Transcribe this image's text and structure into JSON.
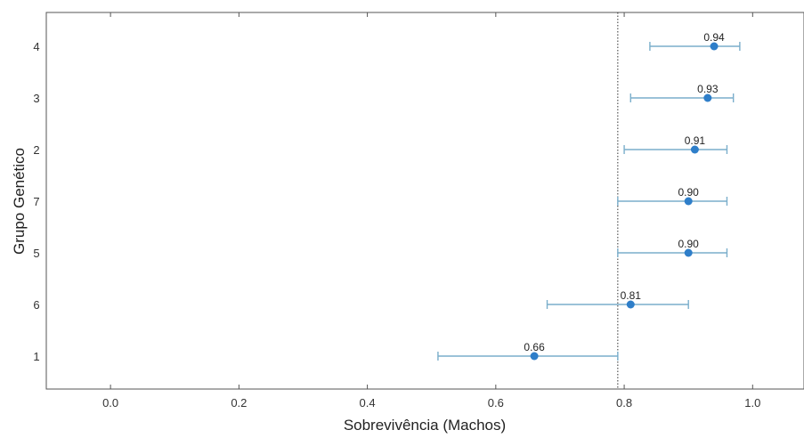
{
  "chart_data": {
    "type": "scatter",
    "orientation": "horizontal-forest",
    "xlabel": "Sobrevivência (Machos)",
    "ylabel": "Grupo Genético",
    "xlim": [
      -0.1,
      1.08
    ],
    "x_ticks": [
      "0.0",
      "0.2",
      "0.4",
      "0.6",
      "0.8",
      "1.0"
    ],
    "x_tick_values": [
      0.0,
      0.2,
      0.4,
      0.6,
      0.8,
      1.0
    ],
    "reference_line": 0.79,
    "grid": false,
    "colors": {
      "point": "#2e7ec9",
      "errorbar": "#7aaecb",
      "frame": "#555555"
    },
    "categories": [
      "4",
      "3",
      "2",
      "7",
      "5",
      "6",
      "1"
    ],
    "points": [
      {
        "group": "4",
        "value": 0.94,
        "label": "0.94",
        "lower": 0.84,
        "upper": 0.98
      },
      {
        "group": "3",
        "value": 0.93,
        "label": "0.93",
        "lower": 0.81,
        "upper": 0.97
      },
      {
        "group": "2",
        "value": 0.91,
        "label": "0.91",
        "lower": 0.8,
        "upper": 0.96
      },
      {
        "group": "7",
        "value": 0.9,
        "label": "0.90",
        "lower": 0.79,
        "upper": 0.96
      },
      {
        "group": "5",
        "value": 0.9,
        "label": "0.90",
        "lower": 0.79,
        "upper": 0.96
      },
      {
        "group": "6",
        "value": 0.81,
        "label": "0.81",
        "lower": 0.68,
        "upper": 0.9
      },
      {
        "group": "1",
        "value": 0.66,
        "label": "0.66",
        "lower": 0.51,
        "upper": 0.79
      }
    ]
  }
}
